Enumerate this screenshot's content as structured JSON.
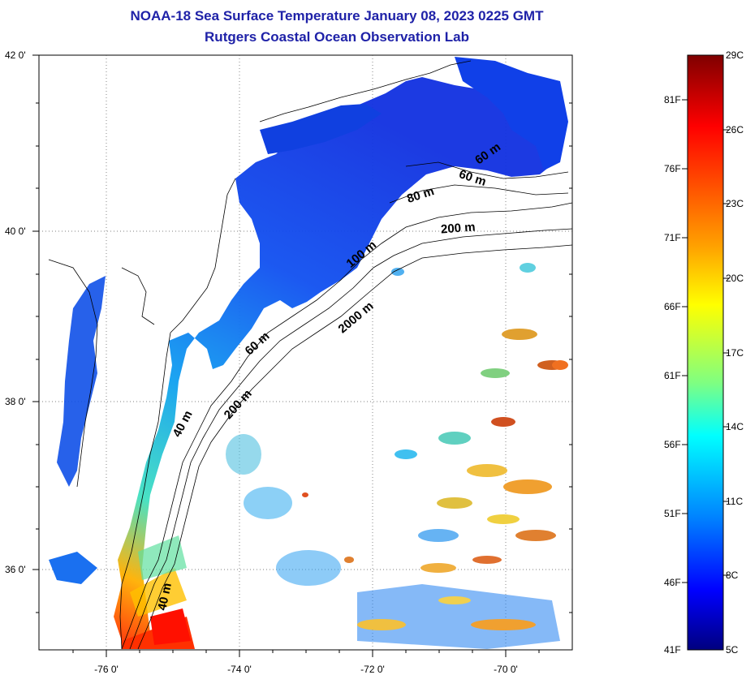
{
  "header": {
    "title_line1": "NOAA-18 Sea Surface Temperature January 08, 2023 0225 GMT",
    "title_line2": "Rutgers Coastal Ocean Observation Lab"
  },
  "map": {
    "lat_labels": [
      "42 0'",
      "40 0'",
      "38 0'",
      "36 0'"
    ],
    "lon_labels": [
      "-76 0'",
      "-74 0'",
      "-72 0'",
      "-70 0'"
    ],
    "depth_contours": [
      "60 m",
      "60 m",
      "80 m",
      "200 m",
      "100 m",
      "2000 m",
      "60 m",
      "200 m",
      "40 m",
      "40 m"
    ]
  },
  "colorbar": {
    "fahrenheit": [
      "81F",
      "76F",
      "71F",
      "66F",
      "61F",
      "56F",
      "51F",
      "46F",
      "41F"
    ],
    "celsius": [
      "29C",
      "26C",
      "23C",
      "20C",
      "17C",
      "14C",
      "11C",
      "8C",
      "5C"
    ],
    "colors": [
      "#7f0000",
      "#ff0000",
      "#ff8000",
      "#ffff00",
      "#80ff80",
      "#00ffff",
      "#0080ff",
      "#0000ff",
      "#00007f"
    ]
  }
}
